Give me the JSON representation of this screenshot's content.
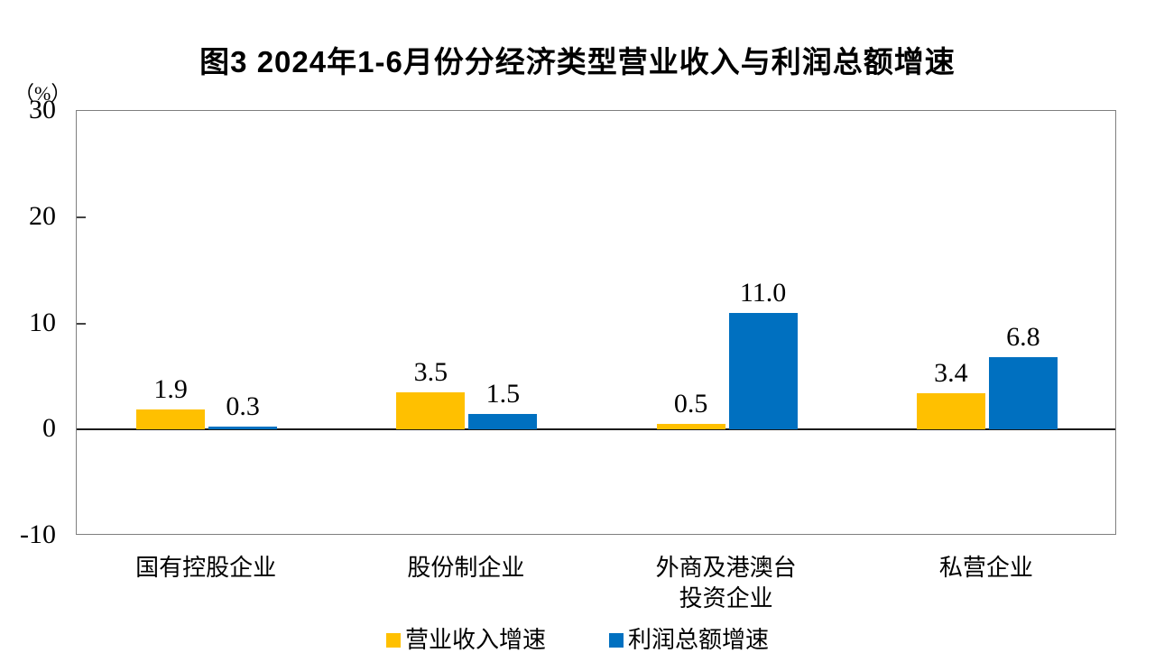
{
  "chart_data": {
    "type": "bar",
    "title": "图3 2024年1-6月份分经济类型营业收入与利润总额增速",
    "unit_label": "（%）",
    "categories": [
      "国有控股企业",
      "股份制企业",
      "外商及港澳台\n投资企业",
      "私营企业"
    ],
    "series": [
      {
        "name": "营业收入增速",
        "color": "#FFC000",
        "values": [
          1.9,
          3.5,
          0.5,
          3.4
        ]
      },
      {
        "name": "利润总额增速",
        "color": "#0070C0",
        "values": [
          0.3,
          1.5,
          11.0,
          6.8
        ]
      }
    ],
    "ylim": [
      -10,
      30
    ],
    "y_ticks": [
      30,
      20,
      10,
      0,
      -10
    ],
    "grid": false,
    "value_labels": true,
    "legend_position": "bottom",
    "zero_line": true
  }
}
